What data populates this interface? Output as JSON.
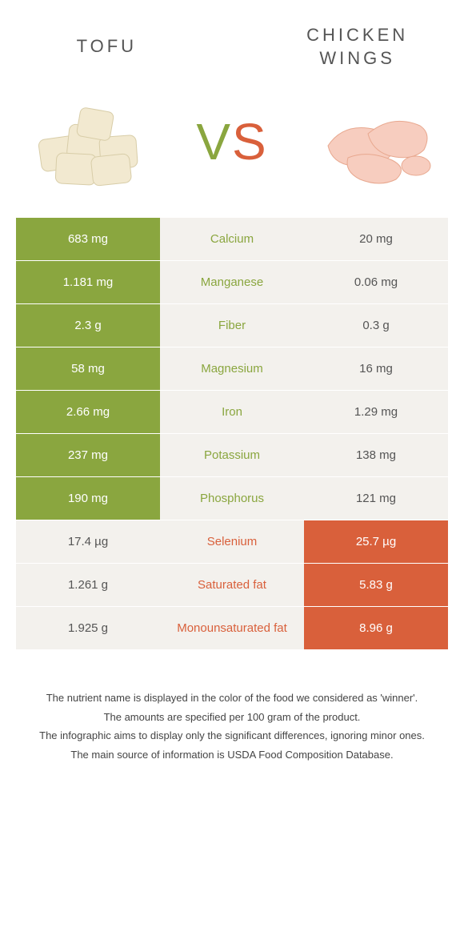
{
  "foods": {
    "left": {
      "name": "TOFU",
      "color": "#8aa63f"
    },
    "right": {
      "name": "CHICKEN WINGS",
      "color": "#d9603b"
    }
  },
  "vs_label": "VS",
  "colors": {
    "left_bg": "#8aa63f",
    "right_bg_winner": "#d9603b",
    "mid_bg": "#f3f1ed",
    "nonwinner_bg": "#f3f1ed",
    "nonwinner_text": "#555555",
    "white": "#ffffff"
  },
  "rows": [
    {
      "nutrient": "Calcium",
      "left": "683 mg",
      "right": "20 mg",
      "winner": "left"
    },
    {
      "nutrient": "Manganese",
      "left": "1.181 mg",
      "right": "0.06 mg",
      "winner": "left"
    },
    {
      "nutrient": "Fiber",
      "left": "2.3 g",
      "right": "0.3 g",
      "winner": "left"
    },
    {
      "nutrient": "Magnesium",
      "left": "58 mg",
      "right": "16 mg",
      "winner": "left"
    },
    {
      "nutrient": "Iron",
      "left": "2.66 mg",
      "right": "1.29 mg",
      "winner": "left"
    },
    {
      "nutrient": "Potassium",
      "left": "237 mg",
      "right": "138 mg",
      "winner": "left"
    },
    {
      "nutrient": "Phosphorus",
      "left": "190 mg",
      "right": "121 mg",
      "winner": "left"
    },
    {
      "nutrient": "Selenium",
      "left": "17.4 µg",
      "right": "25.7 µg",
      "winner": "right"
    },
    {
      "nutrient": "Saturated fat",
      "left": "1.261 g",
      "right": "5.83 g",
      "winner": "right"
    },
    {
      "nutrient": "Monounsaturated fat",
      "left": "1.925 g",
      "right": "8.96 g",
      "winner": "right"
    }
  ],
  "footer": [
    "The nutrient name is displayed in the color of the food we considered as 'winner'.",
    "The amounts are specified per 100 gram of the product.",
    "The infographic aims to display only the significant differences, ignoring minor ones.",
    "The main source of information is USDA Food Composition Database."
  ]
}
